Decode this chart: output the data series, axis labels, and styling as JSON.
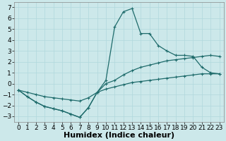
{
  "xlabel": "Humidex (Indice chaleur)",
  "xlim": [
    -0.5,
    23.5
  ],
  "ylim": [
    -3.5,
    7.5
  ],
  "xticks": [
    0,
    1,
    2,
    3,
    4,
    5,
    6,
    7,
    8,
    9,
    10,
    11,
    12,
    13,
    14,
    15,
    16,
    17,
    18,
    19,
    20,
    21,
    22,
    23
  ],
  "yticks": [
    -3,
    -2,
    -1,
    0,
    1,
    2,
    3,
    4,
    5,
    6,
    7
  ],
  "bg_color": "#cce8ea",
  "line_color": "#1e6b6b",
  "grid_color": "#b0d8dc",
  "curve_x": [
    0,
    1,
    2,
    3,
    4,
    5,
    6,
    7,
    8,
    9,
    10,
    11,
    12,
    13,
    14,
    15,
    16,
    17,
    18,
    19,
    20,
    21,
    22,
    23
  ],
  "curve_y": [
    -0.6,
    -1.2,
    -1.7,
    -2.1,
    -2.3,
    -2.5,
    -2.8,
    -3.1,
    -2.2,
    -0.8,
    0.3,
    5.2,
    6.6,
    6.9,
    4.6,
    4.6,
    3.5,
    3.0,
    2.6,
    2.6,
    2.5,
    1.5,
    1.0,
    0.9
  ],
  "line1_x": [
    0,
    1,
    2,
    3,
    4,
    5,
    6,
    7,
    8,
    9,
    10,
    11,
    12,
    13,
    14,
    15,
    16,
    17,
    18,
    19,
    20,
    21,
    22,
    23
  ],
  "line1_y": [
    -0.6,
    -1.2,
    -1.7,
    -2.1,
    -2.3,
    -2.5,
    -2.8,
    -3.1,
    -2.2,
    -0.8,
    0.0,
    0.3,
    0.8,
    1.2,
    1.5,
    1.7,
    1.9,
    2.1,
    2.2,
    2.3,
    2.4,
    2.5,
    2.6,
    2.5
  ],
  "line2_x": [
    0,
    1,
    2,
    3,
    4,
    5,
    6,
    7,
    8,
    9,
    10,
    11,
    12,
    13,
    14,
    15,
    16,
    17,
    18,
    19,
    20,
    21,
    22,
    23
  ],
  "line2_y": [
    -0.6,
    -0.8,
    -1.0,
    -1.2,
    -1.3,
    -1.4,
    -1.5,
    -1.6,
    -1.3,
    -0.8,
    -0.5,
    -0.3,
    -0.1,
    0.1,
    0.2,
    0.3,
    0.4,
    0.5,
    0.6,
    0.7,
    0.8,
    0.9,
    0.9,
    0.9
  ],
  "markersize": 3.5,
  "linewidth": 0.9,
  "xlabel_fontsize": 8,
  "tick_fontsize": 6.5
}
